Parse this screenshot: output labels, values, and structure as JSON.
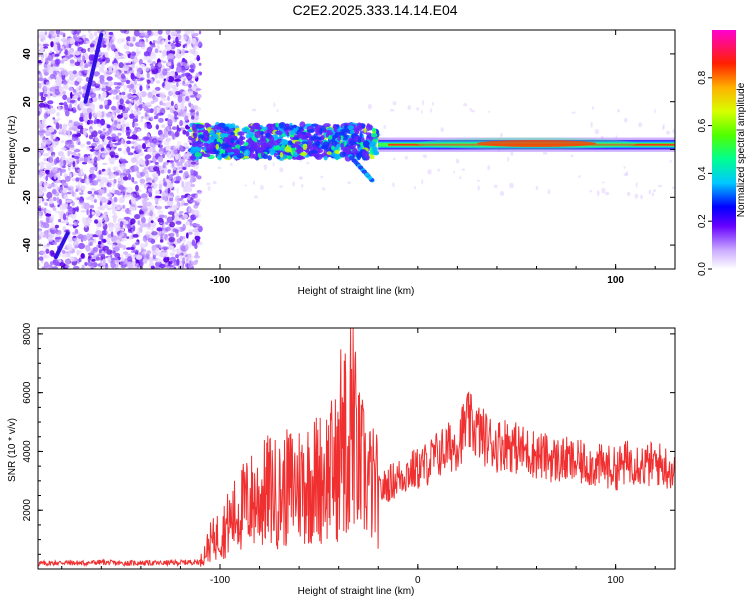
{
  "page_title": "C2E2.2025.333.14.14.E04",
  "colors": {
    "snr_line": "#f03030",
    "axis": "#000000",
    "background": "#ffffff"
  },
  "colorbar": {
    "label": "Normalized spectral amplitude",
    "ticks": [
      "0.0",
      "0.2",
      "0.4",
      "0.6",
      "0.8"
    ],
    "tick_values": [
      0.0,
      0.2,
      0.4,
      0.6,
      0.8
    ],
    "range": [
      0,
      1
    ]
  },
  "chart_data": [
    {
      "type": "heatmap",
      "title": "C2E2.2025.333.14.14.E04",
      "xlabel": "Height of straight line (km)",
      "ylabel": "Frequency (Hz)",
      "xlim": [
        -192,
        130
      ],
      "ylim": [
        -50,
        50
      ],
      "x_ticks": [
        -100,
        100
      ],
      "x_tick_labels": [
        "-100",
        "100"
      ],
      "y_ticks": [
        -40,
        -20,
        0,
        20,
        40
      ],
      "y_tick_labels": [
        "-40",
        "-20",
        "0",
        "20",
        "40"
      ],
      "description_points": {
        "noise_region_x": [
          -192,
          -110
        ],
        "signal_band_center_hz": 2,
        "signal_start_x": -115,
        "streak_upper": [
          [
            -168,
            20
          ],
          [
            -160,
            48
          ]
        ],
        "streak_lower": [
          [
            -183,
            -45
          ],
          [
            -177,
            -35
          ]
        ]
      }
    },
    {
      "type": "line",
      "xlabel": "Height of straight line (km)",
      "ylabel": "SNR (10 * v/v)",
      "xlim": [
        -192,
        130
      ],
      "ylim": [
        0,
        8200
      ],
      "x_ticks": [
        -100,
        0,
        100
      ],
      "x_tick_labels": [
        "-100",
        "0",
        "100"
      ],
      "y_ticks": [
        2000,
        4000,
        6000,
        8000
      ],
      "y_tick_labels": [
        "2000",
        "4000",
        "6000",
        "8000"
      ],
      "series": [
        {
          "name": "SNR",
          "x": [
            -192,
            -180,
            -170,
            -160,
            -150,
            -140,
            -130,
            -120,
            -110,
            -105,
            -100,
            -95,
            -90,
            -85,
            -80,
            -75,
            -70,
            -65,
            -60,
            -55,
            -50,
            -45,
            -40,
            -35,
            -34,
            -30,
            -25,
            -20,
            -15,
            -10,
            -5,
            0,
            5,
            10,
            15,
            20,
            25,
            30,
            35,
            40,
            45,
            50,
            55,
            60,
            65,
            70,
            75,
            80,
            85,
            90,
            95,
            100,
            105,
            110,
            115,
            120,
            125,
            130
          ],
          "values": [
            180,
            220,
            200,
            230,
            190,
            210,
            200,
            220,
            250,
            900,
            1200,
            1600,
            2000,
            2300,
            2400,
            2700,
            2500,
            2800,
            2900,
            3000,
            3100,
            3300,
            3500,
            3900,
            5600,
            3600,
            3000,
            2600,
            2900,
            3100,
            3300,
            3400,
            3600,
            3900,
            4100,
            4300,
            5000,
            4700,
            4400,
            4200,
            4300,
            4100,
            4000,
            3900,
            3800,
            3700,
            3700,
            3600,
            3600,
            3500,
            3500,
            3400,
            3600,
            3700,
            3500,
            3600,
            3500,
            3300
          ]
        }
      ]
    }
  ]
}
